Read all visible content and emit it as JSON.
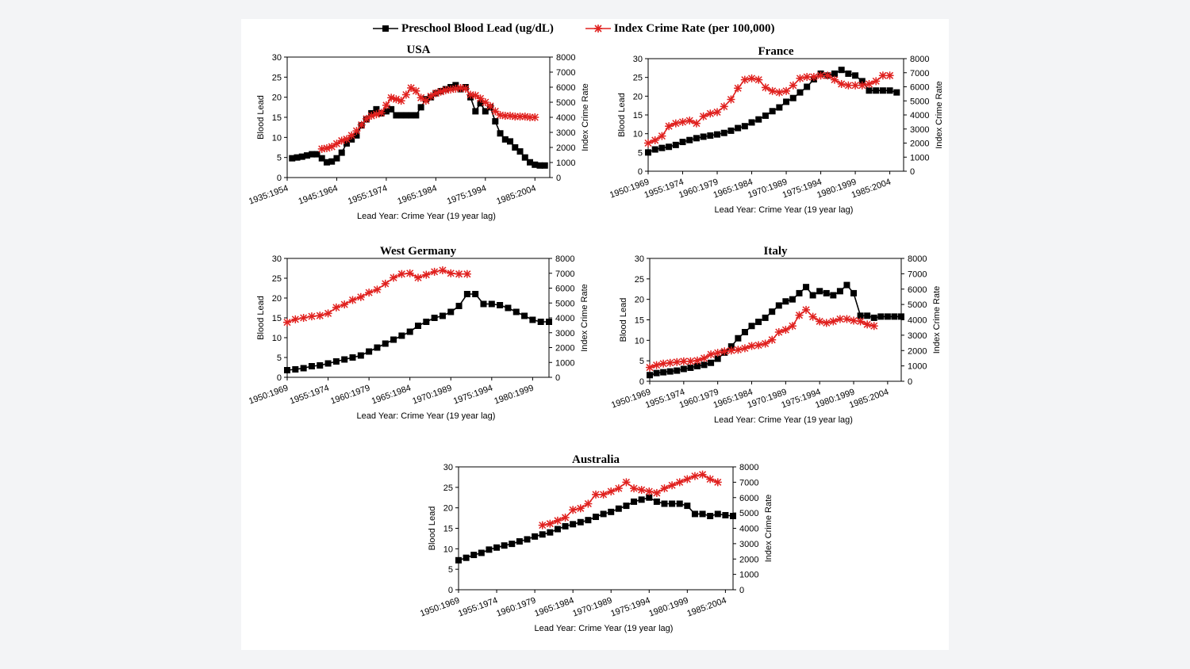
{
  "legend": {
    "lead_label": "Preschool Blood Lead (ug/dL)",
    "crime_label": "Index Crime Rate (per 100,000)",
    "lead_color": "#000000",
    "crime_color": "#e0201e"
  },
  "chart_data": [
    {
      "type": "line",
      "title": "USA",
      "xlabel": "Lead Year: Crime Year (19 year lag)",
      "ylabel": "Blood Lead",
      "y2label": "Index Crime Rate",
      "ylim": [
        0,
        30
      ],
      "y2lim": [
        0,
        8000
      ],
      "yticks": [
        0,
        5,
        10,
        15,
        20,
        25,
        30
      ],
      "y2ticks": [
        0,
        1000,
        2000,
        3000,
        4000,
        5000,
        6000,
        7000,
        8000
      ],
      "xlim": [
        1935,
        1988
      ],
      "x_tick_values": [
        1935,
        1945,
        1955,
        1965,
        1975,
        1985
      ],
      "x_tick_labels": [
        "1935:1954",
        "1945:1964",
        "1955:1974",
        "1965:1984",
        "1975:1994",
        "1985:2004"
      ],
      "series": [
        {
          "name": "Preschool Blood Lead (ug/dL)",
          "axis": "left",
          "x": [
            1936,
            1937,
            1938,
            1939,
            1940,
            1941,
            1942,
            1943,
            1944,
            1945,
            1946,
            1947,
            1948,
            1949,
            1950,
            1951,
            1952,
            1953,
            1954,
            1955,
            1956,
            1957,
            1958,
            1959,
            1960,
            1961,
            1962,
            1963,
            1964,
            1965,
            1966,
            1967,
            1968,
            1969,
            1970,
            1971,
            1972,
            1973,
            1974,
            1975,
            1976,
            1977,
            1978,
            1979,
            1980,
            1981,
            1982,
            1983,
            1984,
            1985,
            1986,
            1987
          ],
          "y": [
            4.8,
            5.0,
            5.2,
            5.5,
            5.8,
            5.8,
            4.8,
            3.8,
            4.0,
            4.8,
            6.2,
            8.5,
            9.5,
            10.5,
            13.0,
            14.5,
            16.0,
            17.0,
            16.0,
            16.5,
            17.0,
            15.5,
            15.5,
            15.5,
            15.5,
            15.5,
            17.5,
            19.5,
            20.0,
            21.0,
            21.5,
            22.0,
            22.5,
            23.0,
            22.0,
            22.5,
            20.0,
            16.5,
            18.5,
            16.5,
            17.5,
            14.0,
            11.0,
            9.5,
            9.0,
            7.5,
            6.5,
            5.0,
            3.8,
            3.2,
            3.0,
            3.0
          ]
        },
        {
          "name": "Index Crime Rate (per 100,000)",
          "axis": "right",
          "x": [
            1942,
            1943,
            1944,
            1945,
            1946,
            1947,
            1948,
            1949,
            1950,
            1951,
            1952,
            1953,
            1954,
            1955,
            1956,
            1957,
            1958,
            1959,
            1960,
            1961,
            1962,
            1963,
            1964,
            1965,
            1966,
            1967,
            1968,
            1969,
            1970,
            1971,
            1972,
            1973,
            1974,
            1975,
            1976,
            1977,
            1978,
            1979,
            1980,
            1981,
            1982,
            1983,
            1984,
            1985
          ],
          "y": [
            1900,
            1950,
            2050,
            2250,
            2450,
            2550,
            2800,
            3100,
            3500,
            3900,
            4100,
            4200,
            4300,
            4800,
            5300,
            5200,
            5100,
            5500,
            5950,
            5750,
            5300,
            5100,
            5400,
            5600,
            5700,
            5800,
            5850,
            5900,
            5950,
            5900,
            5500,
            5450,
            5250,
            5000,
            4750,
            4400,
            4150,
            4100,
            4100,
            4050,
            4050,
            4050,
            4000,
            4000
          ]
        }
      ]
    },
    {
      "type": "line",
      "title": "France",
      "xlabel": "Lead Year: Crime Year (19 year lag)",
      "ylabel": "Blood Lead",
      "y2label": "Index Crime Rate",
      "ylim": [
        0,
        30
      ],
      "y2lim": [
        0,
        8000
      ],
      "yticks": [
        0,
        5,
        10,
        15,
        20,
        25,
        30
      ],
      "y2ticks": [
        0,
        1000,
        2000,
        3000,
        4000,
        5000,
        6000,
        7000,
        8000
      ],
      "xlim": [
        1950,
        1987
      ],
      "x_tick_values": [
        1950,
        1955,
        1960,
        1965,
        1970,
        1975,
        1980,
        1985
      ],
      "x_tick_labels": [
        "1950:1969",
        "1955:1974",
        "1960:1979",
        "1965:1984",
        "1970:1989",
        "1975:1994",
        "1980:1999",
        "1985:2004"
      ],
      "series": [
        {
          "name": "Preschool Blood Lead (ug/dL)",
          "axis": "left",
          "x": [
            1950,
            1951,
            1952,
            1953,
            1954,
            1955,
            1956,
            1957,
            1958,
            1959,
            1960,
            1961,
            1962,
            1963,
            1964,
            1965,
            1966,
            1967,
            1968,
            1969,
            1970,
            1971,
            1972,
            1973,
            1974,
            1975,
            1976,
            1977,
            1978,
            1979,
            1980,
            1981,
            1982,
            1983,
            1984,
            1985,
            1986
          ],
          "y": [
            5.0,
            5.8,
            6.2,
            6.5,
            7.0,
            7.8,
            8.3,
            8.8,
            9.2,
            9.5,
            9.8,
            10.2,
            10.8,
            11.5,
            12.0,
            13.0,
            13.8,
            14.8,
            16.0,
            17.0,
            18.5,
            19.5,
            21.0,
            22.5,
            24.5,
            26.0,
            25.5,
            26.0,
            27.0,
            26.0,
            25.5,
            24.0,
            21.5,
            21.5,
            21.5,
            21.5,
            21.0
          ]
        },
        {
          "name": "Index Crime Rate (per 100,000)",
          "axis": "right",
          "x": [
            1950,
            1951,
            1952,
            1953,
            1954,
            1955,
            1956,
            1957,
            1958,
            1959,
            1960,
            1961,
            1962,
            1963,
            1964,
            1965,
            1966,
            1967,
            1968,
            1969,
            1970,
            1971,
            1972,
            1973,
            1974,
            1975,
            1976,
            1977,
            1978,
            1979,
            1980,
            1981,
            1982,
            1983,
            1984,
            1985
          ],
          "y": [
            2000,
            2200,
            2500,
            3200,
            3400,
            3500,
            3600,
            3400,
            3900,
            4100,
            4200,
            4600,
            5100,
            5900,
            6500,
            6600,
            6500,
            5950,
            5700,
            5600,
            5700,
            6100,
            6600,
            6700,
            6700,
            6800,
            6800,
            6500,
            6200,
            6100,
            6100,
            6100,
            6200,
            6400,
            6800,
            6800
          ]
        }
      ]
    },
    {
      "type": "line",
      "title": "West Germany",
      "xlabel": "Lead Year: Crime Year (19 year lag)",
      "ylabel": "Blood Lead",
      "y2label": "Index Crime Rate",
      "ylim": [
        0,
        30
      ],
      "y2lim": [
        0,
        8000
      ],
      "yticks": [
        0,
        5,
        10,
        15,
        20,
        25,
        30
      ],
      "y2ticks": [
        0,
        1000,
        2000,
        3000,
        4000,
        5000,
        6000,
        7000,
        8000
      ],
      "xlim": [
        1950,
        1982
      ],
      "x_tick_values": [
        1950,
        1955,
        1960,
        1965,
        1970,
        1975,
        1980
      ],
      "x_tick_labels": [
        "1950:1969",
        "1955:1974",
        "1960:1979",
        "1965:1984",
        "1970:1989",
        "1975:1994",
        "1980:1999"
      ],
      "series": [
        {
          "name": "Preschool Blood Lead (ug/dL)",
          "axis": "left",
          "x": [
            1950,
            1951,
            1952,
            1953,
            1954,
            1955,
            1956,
            1957,
            1958,
            1959,
            1960,
            1961,
            1962,
            1963,
            1964,
            1965,
            1966,
            1967,
            1968,
            1969,
            1970,
            1971,
            1972,
            1973,
            1974,
            1975,
            1976,
            1977,
            1978,
            1979,
            1980,
            1981,
            1982
          ],
          "y": [
            1.8,
            2.0,
            2.3,
            2.8,
            3.0,
            3.5,
            4.0,
            4.5,
            5.0,
            5.5,
            6.5,
            7.5,
            8.5,
            9.5,
            10.5,
            11.5,
            13.0,
            14.0,
            15.0,
            15.5,
            16.5,
            18.0,
            21.0,
            21.0,
            18.5,
            18.5,
            18.2,
            17.5,
            16.5,
            15.5,
            14.5,
            14.0,
            14.0
          ]
        },
        {
          "name": "Index Crime Rate (per 100,000)",
          "axis": "right",
          "x": [
            1950,
            1951,
            1952,
            1953,
            1954,
            1955,
            1956,
            1957,
            1958,
            1959,
            1960,
            1961,
            1962,
            1963,
            1964,
            1965,
            1966,
            1967,
            1968,
            1969,
            1970,
            1971,
            1972
          ],
          "y": [
            3700,
            3900,
            4000,
            4100,
            4150,
            4300,
            4700,
            4900,
            5200,
            5400,
            5700,
            5900,
            6300,
            6700,
            6950,
            7000,
            6700,
            6900,
            7100,
            7200,
            7000,
            6950,
            6950
          ]
        }
      ]
    },
    {
      "type": "line",
      "title": "Italy",
      "xlabel": "Lead Year: Crime Year (19 year lag)",
      "ylabel": "Blood Lead",
      "y2label": "Index Crime Rate",
      "ylim": [
        0,
        30
      ],
      "y2lim": [
        0,
        8000
      ],
      "yticks": [
        0,
        5,
        10,
        15,
        20,
        25,
        30
      ],
      "y2ticks": [
        0,
        1000,
        2000,
        3000,
        4000,
        5000,
        6000,
        7000,
        8000
      ],
      "xlim": [
        1950,
        1987
      ],
      "x_tick_values": [
        1950,
        1955,
        1960,
        1965,
        1970,
        1975,
        1980,
        1985
      ],
      "x_tick_labels": [
        "1950:1969",
        "1955:1974",
        "1960:1979",
        "1965:1984",
        "1970:1989",
        "1975:1994",
        "1980:1999",
        "1985:2004"
      ],
      "series": [
        {
          "name": "Preschool Blood Lead (ug/dL)",
          "axis": "left",
          "x": [
            1950,
            1951,
            1952,
            1953,
            1954,
            1955,
            1956,
            1957,
            1958,
            1959,
            1960,
            1961,
            1962,
            1963,
            1964,
            1965,
            1966,
            1967,
            1968,
            1969,
            1970,
            1971,
            1972,
            1973,
            1974,
            1975,
            1976,
            1977,
            1978,
            1979,
            1980,
            1981,
            1982,
            1983,
            1984,
            1985,
            1986,
            1987
          ],
          "y": [
            1.5,
            2.0,
            2.2,
            2.4,
            2.6,
            3.0,
            3.3,
            3.7,
            4.0,
            4.5,
            5.5,
            7.0,
            8.5,
            10.5,
            12.0,
            13.5,
            14.5,
            15.5,
            17.0,
            18.5,
            19.5,
            20.0,
            21.5,
            23.0,
            21.0,
            22.0,
            21.5,
            21.0,
            22.0,
            23.5,
            21.5,
            16.0,
            16.0,
            15.5,
            15.8,
            15.8,
            15.8,
            15.8
          ]
        },
        {
          "name": "Index Crime Rate (per 100,000)",
          "axis": "right",
          "x": [
            1950,
            1951,
            1952,
            1953,
            1954,
            1955,
            1956,
            1957,
            1958,
            1959,
            1960,
            1961,
            1962,
            1963,
            1964,
            1965,
            1966,
            1967,
            1968,
            1969,
            1970,
            1971,
            1972,
            1973,
            1974,
            1975,
            1976,
            1977,
            1978,
            1979,
            1980,
            1981,
            1982,
            1983
          ],
          "y": [
            900,
            1050,
            1150,
            1200,
            1250,
            1300,
            1300,
            1350,
            1500,
            1750,
            1850,
            1950,
            2000,
            2050,
            2150,
            2300,
            2350,
            2450,
            2700,
            3200,
            3350,
            3600,
            4300,
            4650,
            4200,
            3900,
            3800,
            3900,
            4050,
            4050,
            3950,
            3900,
            3700,
            3600
          ]
        }
      ]
    },
    {
      "type": "line",
      "title": "Australia",
      "xlabel": "Lead Year: Crime Year (19 year lag)",
      "ylabel": "Blood Lead",
      "y2label": "Index Crime Rate",
      "ylim": [
        0,
        30
      ],
      "y2lim": [
        0,
        8000
      ],
      "yticks": [
        0,
        5,
        10,
        15,
        20,
        25,
        30
      ],
      "y2ticks": [
        0,
        1000,
        2000,
        3000,
        4000,
        5000,
        6000,
        7000,
        8000
      ],
      "xlim": [
        1950,
        1986
      ],
      "x_tick_values": [
        1950,
        1955,
        1960,
        1965,
        1970,
        1975,
        1980,
        1985
      ],
      "x_tick_labels": [
        "1950:1969",
        "1955:1974",
        "1960:1979",
        "1965:1984",
        "1970:1989",
        "1975:1994",
        "1980:1999",
        "1985:2004"
      ],
      "series": [
        {
          "name": "Preschool Blood Lead (ug/dL)",
          "axis": "left",
          "x": [
            1950,
            1951,
            1952,
            1953,
            1954,
            1955,
            1956,
            1957,
            1958,
            1959,
            1960,
            1961,
            1962,
            1963,
            1964,
            1965,
            1966,
            1967,
            1968,
            1969,
            1970,
            1971,
            1972,
            1973,
            1974,
            1975,
            1976,
            1977,
            1978,
            1979,
            1980,
            1981,
            1982,
            1983,
            1984,
            1985,
            1986
          ],
          "y": [
            7.2,
            7.8,
            8.5,
            9.0,
            9.8,
            10.3,
            10.8,
            11.2,
            11.8,
            12.3,
            13.0,
            13.5,
            14.0,
            14.8,
            15.5,
            16.0,
            16.5,
            17.0,
            17.8,
            18.5,
            19.0,
            19.8,
            20.5,
            21.5,
            22.0,
            22.5,
            21.5,
            21.0,
            21.0,
            21.0,
            20.5,
            18.5,
            18.5,
            18.0,
            18.5,
            18.2,
            18.0
          ]
        },
        {
          "name": "Index Crime Rate (per 100,000)",
          "axis": "right",
          "x": [
            1961,
            1962,
            1963,
            1964,
            1965,
            1966,
            1967,
            1968,
            1969,
            1970,
            1971,
            1972,
            1973,
            1974,
            1975,
            1976,
            1977,
            1978,
            1979,
            1980,
            1981,
            1982,
            1983,
            1984
          ],
          "y": [
            4200,
            4300,
            4500,
            4700,
            5200,
            5300,
            5600,
            6200,
            6200,
            6400,
            6600,
            7000,
            6600,
            6500,
            6400,
            6300,
            6600,
            6800,
            7000,
            7200,
            7400,
            7500,
            7200,
            7000
          ]
        }
      ]
    }
  ]
}
